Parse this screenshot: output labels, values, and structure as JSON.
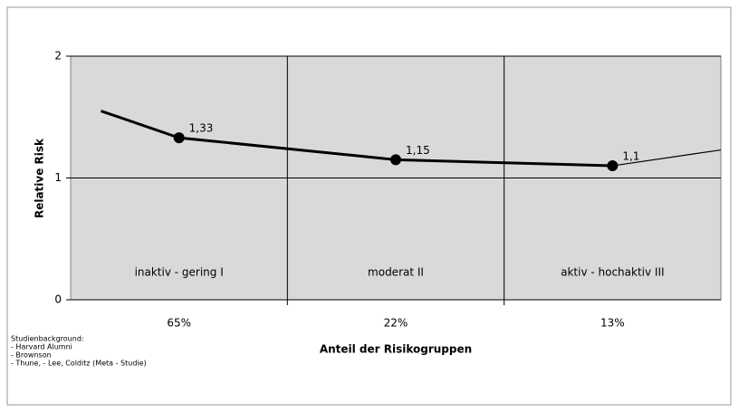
{
  "chart_data": {
    "type": "line",
    "categories": [
      "65%",
      "22%",
      "13%"
    ],
    "regions": [
      "inaktiv - gering I",
      "moderat II",
      "aktiv - hochaktiv III"
    ],
    "x_label": "Anteil der Risikogruppen",
    "y_label": "Relative Risk",
    "notes": [
      "Studienbackground:",
      "- Harvard Alumni",
      "- Brownson",
      "- Thune, - Lee, Colditz (Meta - Studie)"
    ],
    "xlim": [
      0,
      3
    ],
    "ylim": [
      0,
      2
    ],
    "yticks": [
      0,
      1,
      2
    ],
    "grid": true,
    "series": [
      {
        "color": "#000000",
        "x": [
          0.14,
          0.5,
          1.5,
          2.5,
          3
        ],
        "values": [
          1.55,
          1.33,
          1.15,
          1.1,
          1.23
        ],
        "value_labels": [
          null,
          "1,33",
          "1,15",
          "1,1",
          null
        ]
      }
    ]
  }
}
